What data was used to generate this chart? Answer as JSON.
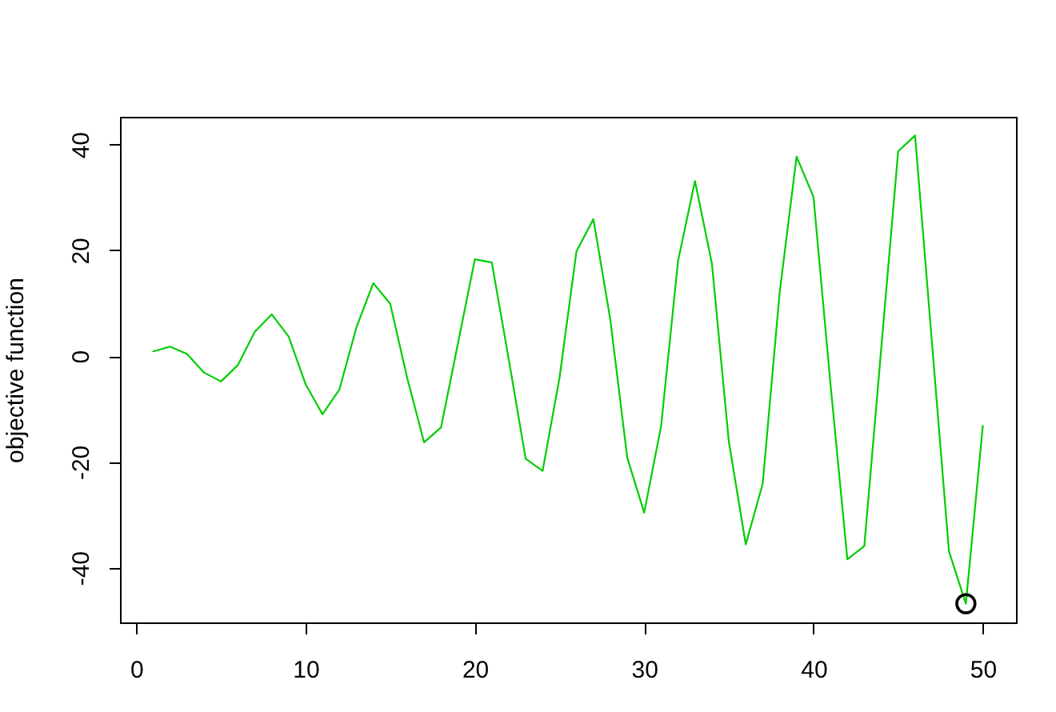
{
  "chart_data": {
    "type": "line",
    "ylabel": "objective function",
    "x": [
      1,
      2,
      3,
      4,
      5,
      6,
      7,
      8,
      9,
      10,
      11,
      12,
      13,
      14,
      15,
      16,
      17,
      18,
      19,
      20,
      21,
      22,
      23,
      24,
      25,
      26,
      27,
      28,
      29,
      30,
      31,
      32,
      33,
      34,
      35,
      36,
      37,
      38,
      39,
      40,
      41,
      42,
      43,
      44,
      45,
      46,
      47,
      48,
      49,
      50
    ],
    "series": [
      {
        "color": "#00cd00",
        "values": [
          0.9,
          1.8,
          0.4,
          -3.1,
          -4.8,
          -1.7,
          4.6,
          7.9,
          3.7,
          -5.3,
          -11.0,
          -6.3,
          5.4,
          13.8,
          9.9,
          -4.1,
          -16.3,
          -13.5,
          2.4,
          18.3,
          17.7,
          -0.6,
          -19.4,
          -21.7,
          -4.1,
          19.8,
          25.9,
          6.9,
          -19.2,
          -29.6,
          -13.2,
          18.0,
          33.1,
          17.5,
          -16.2,
          -35.6,
          -24.1,
          12.0,
          37.7,
          30.1,
          -5.2,
          -38.4,
          -35.9,
          1.4,
          38.7,
          41.7,
          2.4,
          -36.9,
          -46.8,
          -13.2
        ]
      },
      {
        "type": "scatter",
        "x": [
          49
        ],
        "values": [
          -46.8
        ],
        "color": "#000000",
        "marker": "circle"
      }
    ],
    "xlim": [
      -0.96,
      51.96
    ],
    "ylim": [
      -50.34,
      45.24
    ],
    "xticks": [
      0,
      10,
      20,
      30,
      40,
      50
    ],
    "yticks": [
      -40,
      -20,
      0,
      20,
      40
    ]
  }
}
